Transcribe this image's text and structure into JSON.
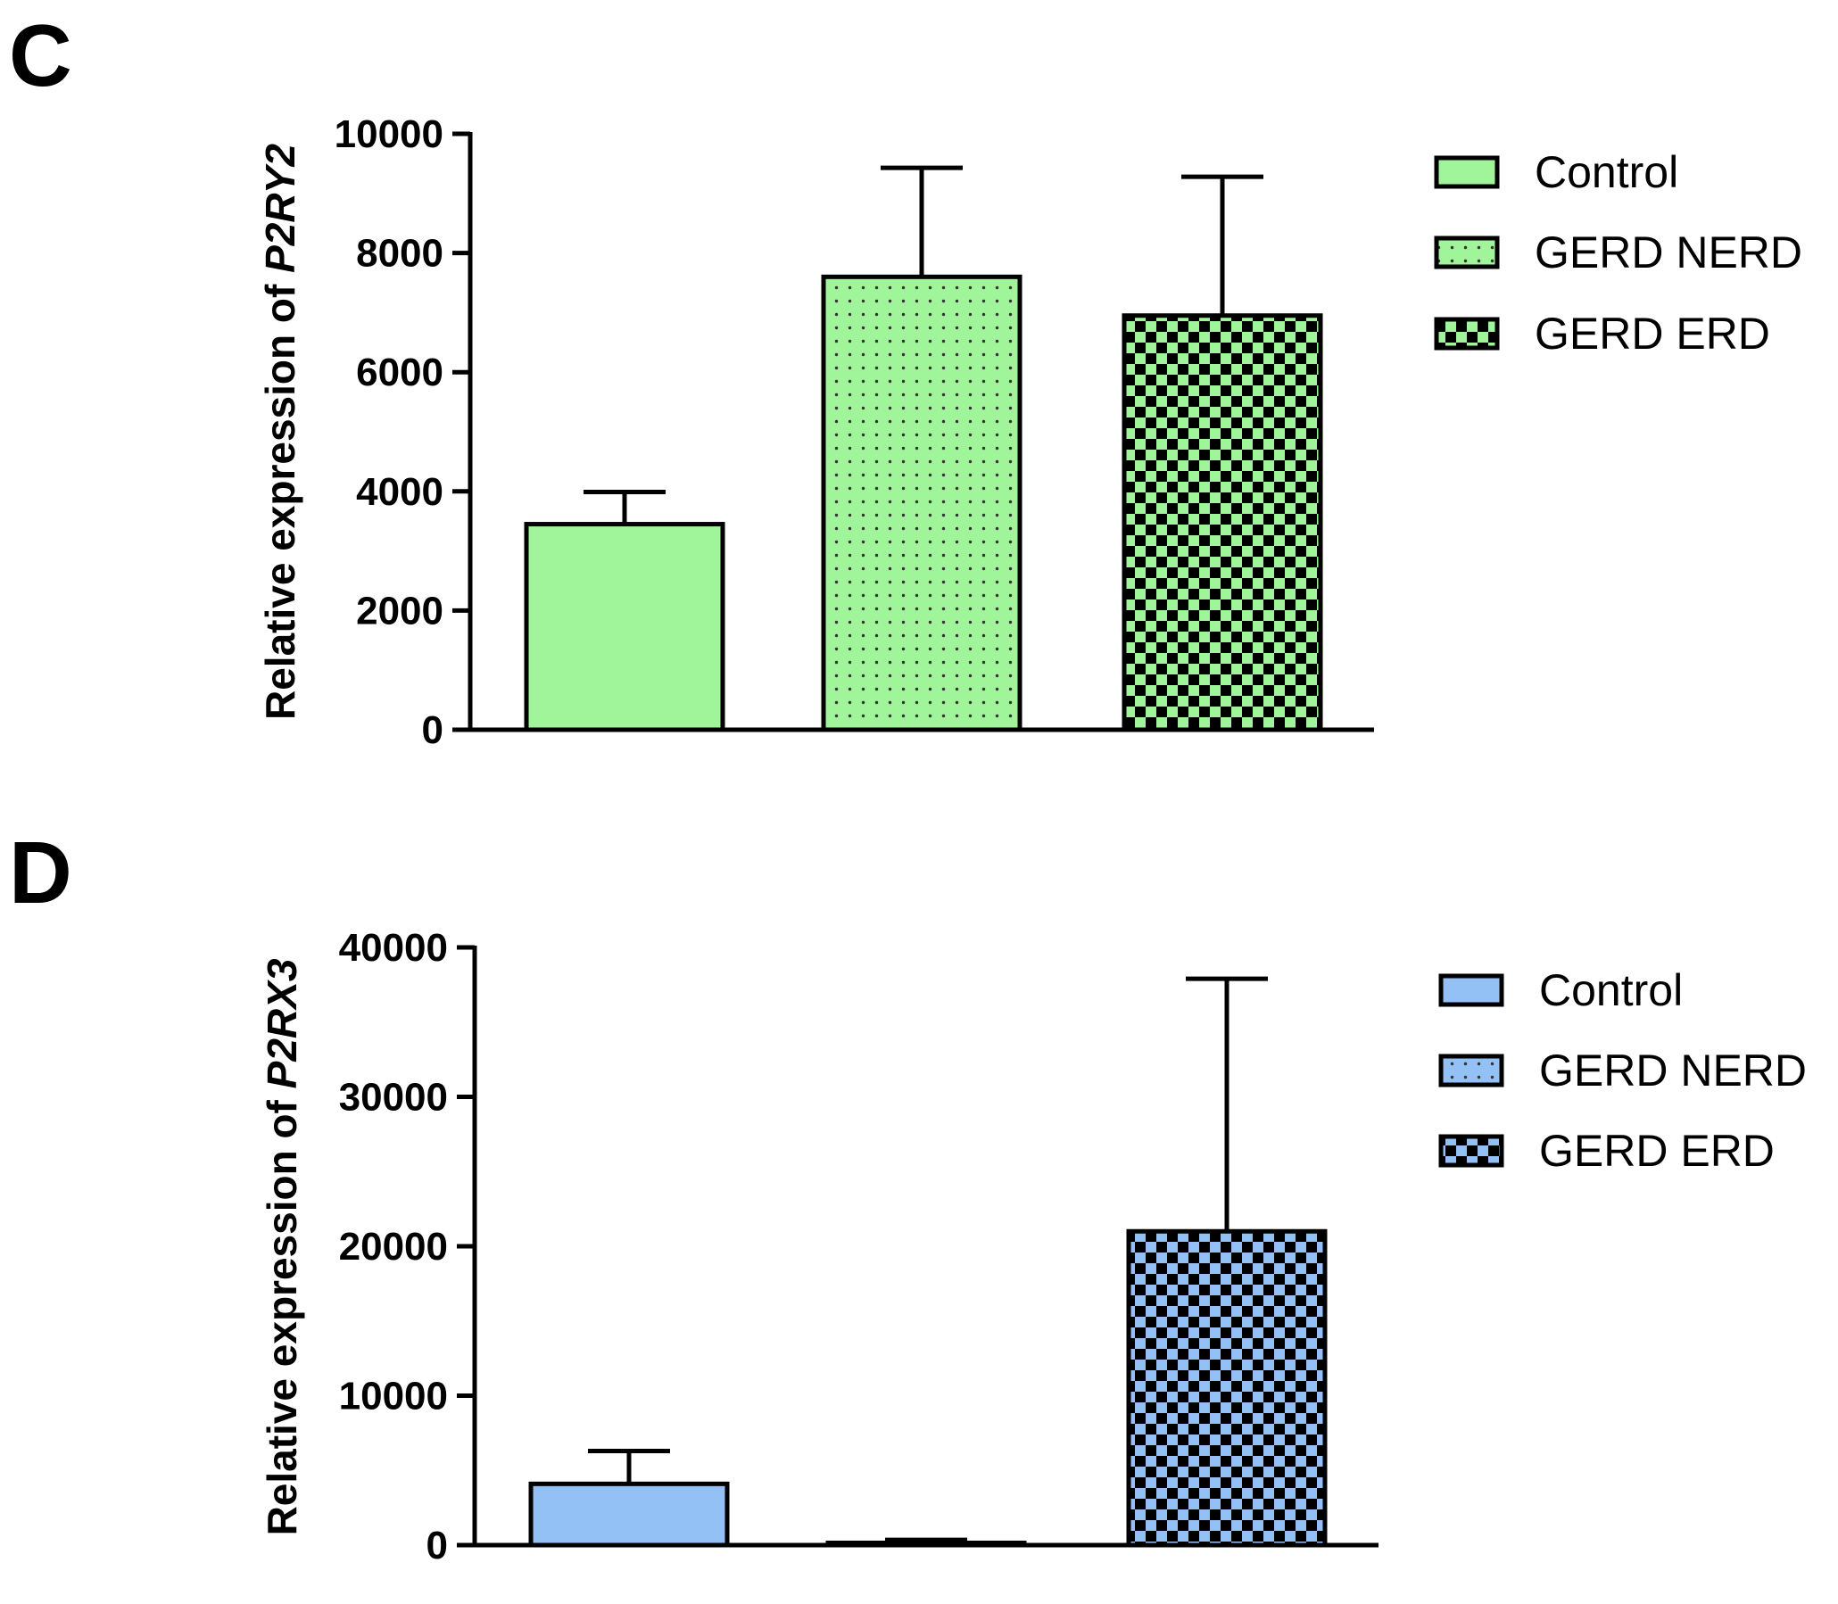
{
  "chart_data": [
    {
      "panel": "C",
      "type": "bar",
      "ylabel_prefix": "Relative expression of ",
      "ylabel_gene": "P2RY2",
      "ylim": [
        0,
        10000
      ],
      "yticks": [
        "0",
        "2000",
        "4000",
        "6000",
        "8000",
        "10000"
      ],
      "legend_position": "top-right",
      "fill_color": "#a0f59a",
      "categories": [
        "Control",
        "GERD NERD",
        "GERD ERD"
      ],
      "series": [
        {
          "name": "Control",
          "value": 3450,
          "error": 540,
          "pattern": "solid"
        },
        {
          "name": "GERD NERD",
          "value": 7600,
          "error": 1830,
          "pattern": "dots"
        },
        {
          "name": "GERD ERD",
          "value": 6950,
          "error": 2330,
          "pattern": "checker"
        }
      ]
    },
    {
      "panel": "D",
      "type": "bar",
      "ylabel_prefix": "Relative expression of ",
      "ylabel_gene": "P2RX3",
      "ylim": [
        0,
        40000
      ],
      "yticks": [
        "0",
        "10000",
        "20000",
        "30000",
        "40000"
      ],
      "legend_position": "top-right",
      "fill_color": "#93c1f5",
      "categories": [
        "Control",
        "GERD NERD",
        "GERD ERD"
      ],
      "series": [
        {
          "name": "Control",
          "value": 4100,
          "error": 2200,
          "pattern": "solid"
        },
        {
          "name": "GERD NERD",
          "value": 150,
          "error": 200,
          "pattern": "dots"
        },
        {
          "name": "GERD ERD",
          "value": 21000,
          "error": 16900,
          "pattern": "checker"
        }
      ]
    }
  ]
}
